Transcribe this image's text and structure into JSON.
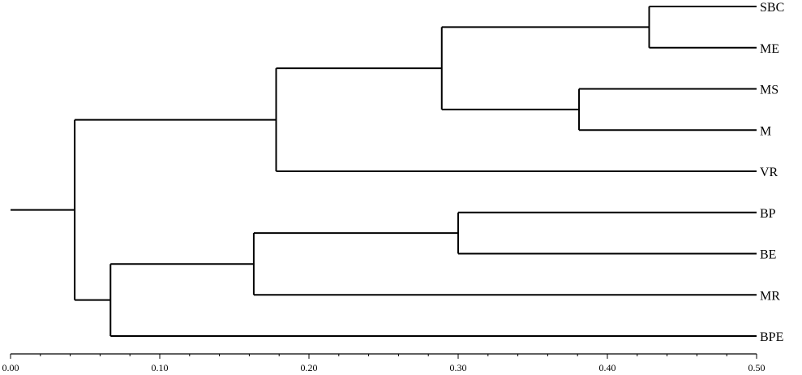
{
  "dendrogram": {
    "leaves": [
      {
        "id": "SBC",
        "label": "SBC"
      },
      {
        "id": "ME",
        "label": "ME"
      },
      {
        "id": "MS",
        "label": "MS"
      },
      {
        "id": "M",
        "label": "M"
      },
      {
        "id": "VR",
        "label": "VR"
      },
      {
        "id": "BP",
        "label": "BP"
      },
      {
        "id": "BE",
        "label": "BE"
      },
      {
        "id": "MR",
        "label": "MR"
      },
      {
        "id": "BPE",
        "label": "BPE"
      }
    ],
    "clusters": [
      {
        "id": "c1",
        "children": [
          "SBC",
          "ME"
        ],
        "height": 0.428
      },
      {
        "id": "c2",
        "children": [
          "MS",
          "M"
        ],
        "height": 0.381
      },
      {
        "id": "c3",
        "children": [
          "c1",
          "c2"
        ],
        "height": 0.289
      },
      {
        "id": "c4",
        "children": [
          "c3",
          "VR"
        ],
        "height": 0.178
      },
      {
        "id": "c5",
        "children": [
          "BP",
          "BE"
        ],
        "height": 0.3
      },
      {
        "id": "c6",
        "children": [
          "c5",
          "MR"
        ],
        "height": 0.163
      },
      {
        "id": "c7",
        "children": [
          "c6",
          "BPE"
        ],
        "height": 0.067
      },
      {
        "id": "root",
        "children": [
          "c4",
          "c7"
        ],
        "height": 0.043
      }
    ],
    "root_stub_start": 0.0
  },
  "axis": {
    "min": 0.0,
    "max": 0.5,
    "ticks": [
      "0.00",
      "0.10",
      "0.20",
      "0.30",
      "0.40",
      "0.50"
    ],
    "minor_step": 0.02
  }
}
